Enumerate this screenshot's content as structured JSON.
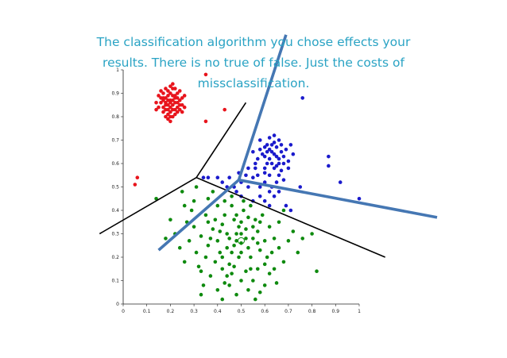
{
  "caption": "The classification algorithm you chose effects your results. There is no true of false. Just the costs of missclassification.",
  "colors": {
    "red": "#e8141c",
    "blue": "#1a1acc",
    "green": "#0e8a0e",
    "boundary_black": "#000000",
    "boundary_blue": "#4577b3",
    "caption": "#2aa3c4"
  },
  "chart_data": {
    "type": "scatter",
    "xlim": [
      0,
      1
    ],
    "ylim": [
      0,
      1
    ],
    "x_ticks": [
      "0",
      "0.1",
      "0.2",
      "0.3",
      "0.4",
      "0.5",
      "0.6",
      "0.7",
      "0.8",
      "0.9",
      "1"
    ],
    "y_ticks": [
      "0",
      "0.1",
      "0.2",
      "0.3",
      "0.4",
      "0.5",
      "0.6",
      "0.7",
      "0.8",
      "0.9",
      "1"
    ],
    "grid": false,
    "series": [
      {
        "color": "red",
        "points": [
          [
            0.17,
            0.88
          ],
          [
            0.18,
            0.86
          ],
          [
            0.19,
            0.89
          ],
          [
            0.2,
            0.87
          ],
          [
            0.21,
            0.85
          ],
          [
            0.22,
            0.88
          ],
          [
            0.23,
            0.86
          ],
          [
            0.16,
            0.86
          ],
          [
            0.18,
            0.83
          ],
          [
            0.2,
            0.84
          ],
          [
            0.22,
            0.83
          ],
          [
            0.24,
            0.87
          ],
          [
            0.19,
            0.91
          ],
          [
            0.21,
            0.92
          ],
          [
            0.17,
            0.9
          ],
          [
            0.23,
            0.9
          ],
          [
            0.25,
            0.85
          ],
          [
            0.19,
            0.81
          ],
          [
            0.21,
            0.8
          ],
          [
            0.17,
            0.82
          ],
          [
            0.15,
            0.84
          ],
          [
            0.2,
            0.9
          ],
          [
            0.18,
            0.88
          ],
          [
            0.22,
            0.86
          ],
          [
            0.2,
            0.82
          ],
          [
            0.24,
            0.83
          ],
          [
            0.16,
            0.88
          ],
          [
            0.23,
            0.84
          ],
          [
            0.19,
            0.85
          ],
          [
            0.21,
            0.87
          ],
          [
            0.26,
            0.89
          ],
          [
            0.14,
            0.86
          ],
          [
            0.2,
            0.78
          ],
          [
            0.22,
            0.92
          ],
          [
            0.18,
            0.8
          ],
          [
            0.24,
            0.91
          ],
          [
            0.25,
            0.88
          ],
          [
            0.17,
            0.84
          ],
          [
            0.21,
            0.83
          ],
          [
            0.19,
            0.87
          ],
          [
            0.23,
            0.88
          ],
          [
            0.2,
            0.86
          ],
          [
            0.18,
            0.85
          ],
          [
            0.22,
            0.89
          ],
          [
            0.16,
            0.91
          ],
          [
            0.2,
            0.93
          ],
          [
            0.24,
            0.85
          ],
          [
            0.19,
            0.83
          ],
          [
            0.21,
            0.89
          ],
          [
            0.17,
            0.87
          ],
          [
            0.15,
            0.89
          ],
          [
            0.23,
            0.82
          ],
          [
            0.26,
            0.84
          ],
          [
            0.2,
            0.8
          ],
          [
            0.22,
            0.81
          ],
          [
            0.18,
            0.92
          ],
          [
            0.21,
            0.94
          ],
          [
            0.25,
            0.82
          ],
          [
            0.14,
            0.83
          ],
          [
            0.19,
            0.79
          ],
          [
            0.35,
            0.98
          ],
          [
            0.43,
            0.83
          ],
          [
            0.35,
            0.78
          ],
          [
            0.06,
            0.54
          ],
          [
            0.05,
            0.51
          ]
        ]
      },
      {
        "color": "blue",
        "points": [
          [
            0.6,
            0.63
          ],
          [
            0.62,
            0.66
          ],
          [
            0.64,
            0.64
          ],
          [
            0.66,
            0.62
          ],
          [
            0.63,
            0.6
          ],
          [
            0.61,
            0.68
          ],
          [
            0.65,
            0.67
          ],
          [
            0.67,
            0.65
          ],
          [
            0.59,
            0.64
          ],
          [
            0.62,
            0.62
          ],
          [
            0.64,
            0.69
          ],
          [
            0.66,
            0.6
          ],
          [
            0.68,
            0.63
          ],
          [
            0.6,
            0.67
          ],
          [
            0.63,
            0.65
          ],
          [
            0.65,
            0.63
          ],
          [
            0.61,
            0.6
          ],
          [
            0.67,
            0.68
          ],
          [
            0.58,
            0.66
          ],
          [
            0.69,
            0.66
          ],
          [
            0.62,
            0.71
          ],
          [
            0.64,
            0.58
          ],
          [
            0.6,
            0.58
          ],
          [
            0.66,
            0.7
          ],
          [
            0.7,
            0.61
          ],
          [
            0.57,
            0.62
          ],
          [
            0.63,
            0.68
          ],
          [
            0.65,
            0.59
          ],
          [
            0.61,
            0.65
          ],
          [
            0.68,
            0.6
          ],
          [
            0.72,
            0.64
          ],
          [
            0.55,
            0.65
          ],
          [
            0.6,
            0.56
          ],
          [
            0.67,
            0.57
          ],
          [
            0.64,
            0.72
          ],
          [
            0.58,
            0.7
          ],
          [
            0.71,
            0.68
          ],
          [
            0.62,
            0.55
          ],
          [
            0.66,
            0.55
          ],
          [
            0.7,
            0.58
          ],
          [
            0.56,
            0.58
          ],
          [
            0.65,
            0.52
          ],
          [
            0.6,
            0.52
          ],
          [
            0.63,
            0.5
          ],
          [
            0.58,
            0.5
          ],
          [
            0.62,
            0.48
          ],
          [
            0.66,
            0.48
          ],
          [
            0.55,
            0.54
          ],
          [
            0.68,
            0.53
          ],
          [
            0.64,
            0.46
          ],
          [
            0.6,
            0.44
          ],
          [
            0.5,
            0.52
          ],
          [
            0.53,
            0.5
          ],
          [
            0.47,
            0.5
          ],
          [
            0.45,
            0.54
          ],
          [
            0.52,
            0.55
          ],
          [
            0.57,
            0.55
          ],
          [
            0.49,
            0.56
          ],
          [
            0.42,
            0.52
          ],
          [
            0.4,
            0.54
          ],
          [
            0.36,
            0.54
          ],
          [
            0.34,
            0.54
          ],
          [
            0.44,
            0.5
          ],
          [
            0.62,
            0.42
          ],
          [
            0.69,
            0.42
          ],
          [
            0.71,
            0.4
          ],
          [
            0.76,
            0.88
          ],
          [
            0.87,
            0.63
          ],
          [
            0.87,
            0.59
          ],
          [
            0.92,
            0.52
          ],
          [
            1.0,
            0.45
          ],
          [
            0.75,
            0.5
          ],
          [
            0.53,
            0.58
          ],
          [
            0.56,
            0.6
          ],
          [
            0.48,
            0.48
          ],
          [
            0.5,
            0.46
          ],
          [
            0.55,
            0.44
          ],
          [
            0.58,
            0.46
          ]
        ]
      },
      {
        "color": "green",
        "points": [
          [
            0.45,
            0.28
          ],
          [
            0.48,
            0.3
          ],
          [
            0.5,
            0.26
          ],
          [
            0.52,
            0.32
          ],
          [
            0.42,
            0.34
          ],
          [
            0.46,
            0.22
          ],
          [
            0.55,
            0.28
          ],
          [
            0.44,
            0.3
          ],
          [
            0.5,
            0.35
          ],
          [
            0.47,
            0.25
          ],
          [
            0.53,
            0.24
          ],
          [
            0.4,
            0.27
          ],
          [
            0.57,
            0.31
          ],
          [
            0.49,
            0.2
          ],
          [
            0.43,
            0.38
          ],
          [
            0.51,
            0.4
          ],
          [
            0.56,
            0.36
          ],
          [
            0.38,
            0.32
          ],
          [
            0.46,
            0.42
          ],
          [
            0.6,
            0.27
          ],
          [
            0.54,
            0.2
          ],
          [
            0.41,
            0.22
          ],
          [
            0.58,
            0.23
          ],
          [
            0.47,
            0.16
          ],
          [
            0.52,
            0.14
          ],
          [
            0.39,
            0.18
          ],
          [
            0.62,
            0.33
          ],
          [
            0.36,
            0.25
          ],
          [
            0.44,
            0.12
          ],
          [
            0.55,
            0.1
          ],
          [
            0.6,
            0.17
          ],
          [
            0.35,
            0.38
          ],
          [
            0.48,
            0.38
          ],
          [
            0.63,
            0.22
          ],
          [
            0.42,
            0.15
          ],
          [
            0.5,
            0.1
          ],
          [
            0.57,
            0.15
          ],
          [
            0.37,
            0.12
          ],
          [
            0.45,
            0.08
          ],
          [
            0.53,
            0.06
          ],
          [
            0.64,
            0.28
          ],
          [
            0.33,
            0.29
          ],
          [
            0.59,
            0.38
          ],
          [
            0.4,
            0.42
          ],
          [
            0.54,
            0.42
          ],
          [
            0.31,
            0.22
          ],
          [
            0.66,
            0.24
          ],
          [
            0.46,
            0.46
          ],
          [
            0.36,
            0.45
          ],
          [
            0.62,
            0.13
          ],
          [
            0.32,
            0.16
          ],
          [
            0.48,
            0.04
          ],
          [
            0.58,
            0.05
          ],
          [
            0.4,
            0.06
          ],
          [
            0.68,
            0.18
          ],
          [
            0.3,
            0.33
          ],
          [
            0.66,
            0.35
          ],
          [
            0.51,
            0.44
          ],
          [
            0.43,
            0.44
          ],
          [
            0.28,
            0.27
          ],
          [
            0.7,
            0.27
          ],
          [
            0.34,
            0.08
          ],
          [
            0.6,
            0.08
          ],
          [
            0.27,
            0.35
          ],
          [
            0.72,
            0.31
          ],
          [
            0.24,
            0.24
          ],
          [
            0.26,
            0.18
          ],
          [
            0.74,
            0.22
          ],
          [
            0.42,
            0.02
          ],
          [
            0.56,
            0.02
          ],
          [
            0.3,
            0.44
          ],
          [
            0.68,
            0.4
          ],
          [
            0.38,
            0.48
          ],
          [
            0.31,
            0.5
          ],
          [
            0.26,
            0.42
          ],
          [
            0.22,
            0.3
          ],
          [
            0.2,
            0.36
          ],
          [
            0.18,
            0.28
          ],
          [
            0.14,
            0.45
          ],
          [
            0.25,
            0.48
          ],
          [
            0.29,
            0.4
          ],
          [
            0.76,
            0.28
          ],
          [
            0.82,
            0.14
          ],
          [
            0.8,
            0.3
          ],
          [
            0.33,
            0.14
          ],
          [
            0.45,
            0.17
          ],
          [
            0.49,
            0.33
          ],
          [
            0.53,
            0.37
          ],
          [
            0.41,
            0.31
          ],
          [
            0.47,
            0.36
          ],
          [
            0.55,
            0.33
          ],
          [
            0.44,
            0.24
          ],
          [
            0.5,
            0.22
          ],
          [
            0.52,
            0.28
          ],
          [
            0.39,
            0.36
          ],
          [
            0.35,
            0.2
          ],
          [
            0.61,
            0.2
          ],
          [
            0.43,
            0.09
          ],
          [
            0.57,
            0.26
          ],
          [
            0.37,
            0.28
          ],
          [
            0.46,
            0.13
          ],
          [
            0.54,
            0.15
          ],
          [
            0.48,
            0.27
          ],
          [
            0.42,
            0.2
          ],
          [
            0.5,
            0.3
          ],
          [
            0.58,
            0.35
          ],
          [
            0.36,
            0.35
          ],
          [
            0.64,
            0.15
          ],
          [
            0.33,
            0.04
          ],
          [
            0.65,
            0.09
          ]
        ]
      }
    ],
    "boundaries": [
      {
        "color": "boundary_black",
        "points": [
          [
            -0.1,
            0.3
          ],
          [
            0.31,
            0.54
          ],
          [
            0.52,
            0.86
          ]
        ]
      },
      {
        "color": "boundary_black",
        "points": [
          [
            0.31,
            0.54
          ],
          [
            1.11,
            0.2
          ]
        ]
      },
      {
        "color": "boundary_blue",
        "points": [
          [
            0.69,
            1.15
          ],
          [
            0.49,
            0.53
          ],
          [
            1.33,
            0.37
          ]
        ]
      },
      {
        "color": "boundary_blue",
        "points": [
          [
            0.49,
            0.53
          ],
          [
            0.15,
            0.23
          ]
        ]
      }
    ],
    "highlighted_point": [
      0.5,
      0.27
    ]
  }
}
